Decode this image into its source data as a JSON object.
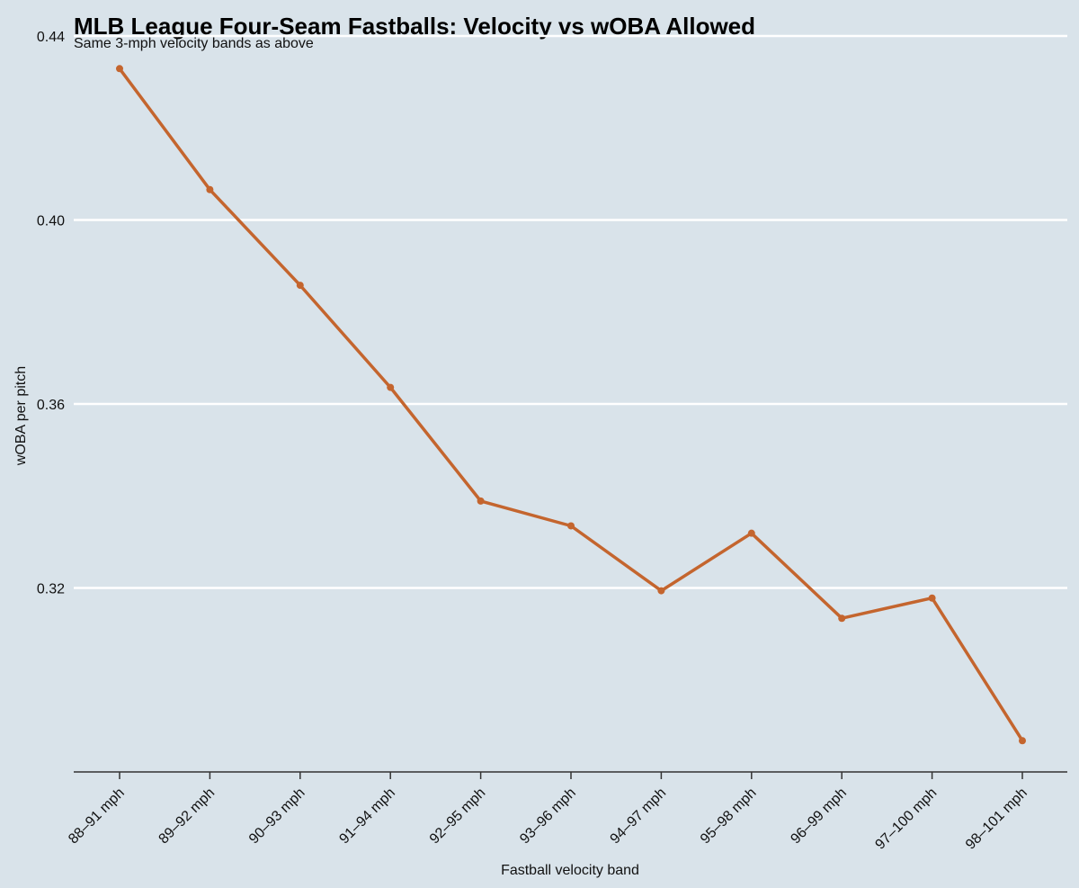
{
  "chart_data": {
    "type": "line",
    "title": "MLB League Four-Seam Fastballs: Velocity vs wOBA Allowed",
    "subtitle": "Same 3-mph velocity bands as above",
    "xlabel": "Fastball velocity band",
    "ylabel": "wOBA per pitch",
    "categories": [
      "88–91 mph",
      "89–92 mph",
      "90–93 mph",
      "91–94 mph",
      "92–95 mph",
      "93–96 mph",
      "94–97 mph",
      "95–98 mph",
      "96–99 mph",
      "97–100 mph",
      "98–101 mph"
    ],
    "series": [
      {
        "name": "wOBA per pitch",
        "values": [
          0.4329,
          0.4066,
          0.3858,
          0.3636,
          0.3389,
          0.3335,
          0.3194,
          0.3319,
          0.3134,
          0.3178,
          0.2868
        ]
      }
    ],
    "ylim": [
      0.28,
      0.44
    ],
    "yticks": [
      "0.32",
      "0.36",
      "0.40",
      "0.44"
    ],
    "grid": true,
    "line_color": "#c4652e",
    "background_color": "#d9e3ea"
  }
}
